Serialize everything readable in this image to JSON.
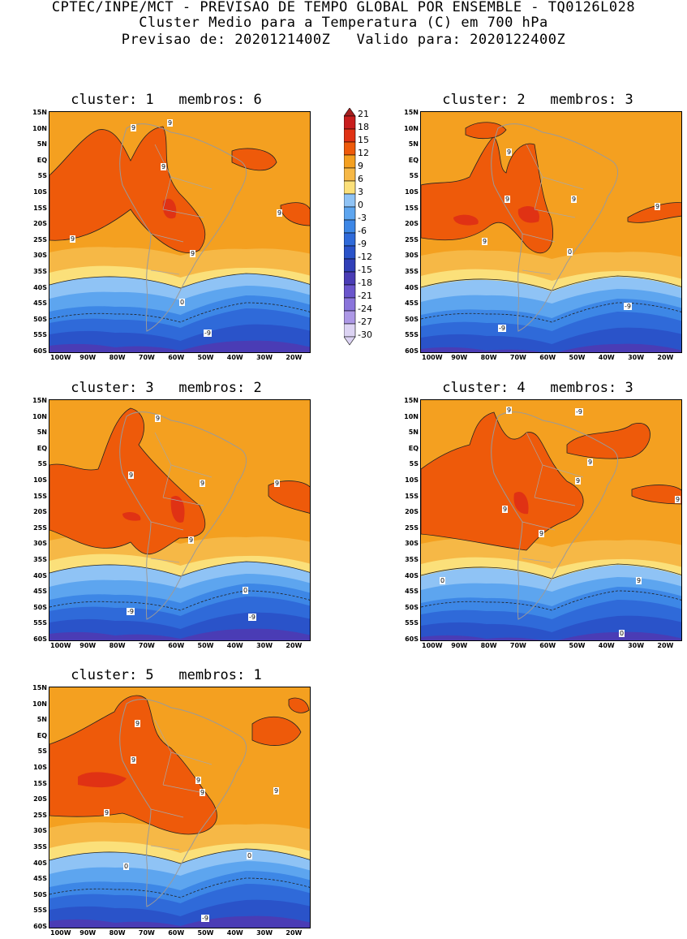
{
  "header": {
    "line1": "CPTEC/INPE/MCT - PREVISAO DE TEMPO GLOBAL POR ENSEMBLE - TQ0126L028",
    "line2": "Cluster Medio para a Temperatura (C) em 700 hPa",
    "line3": "Previsao de: 2020121400Z   Valido para: 2020122400Z"
  },
  "axes": {
    "lat_labels": [
      "15N",
      "10N",
      "5N",
      "EQ",
      "5S",
      "10S",
      "15S",
      "20S",
      "25S",
      "30S",
      "35S",
      "40S",
      "45S",
      "50S",
      "55S",
      "60S"
    ],
    "lon_labels": [
      "100W",
      "90W",
      "80W",
      "70W",
      "60W",
      "50W",
      "40W",
      "30W",
      "20W"
    ]
  },
  "colorbar": {
    "levels": [
      "21",
      "18",
      "15",
      "12",
      "9",
      "6",
      "3",
      "0",
      "-3",
      "-6",
      "-9",
      "-12",
      "-15",
      "-18",
      "-21",
      "-24",
      "-27",
      "-30"
    ],
    "colors": [
      "#a51e1e",
      "#c81e1e",
      "#e03214",
      "#ee5a0a",
      "#f4a020",
      "#f6b846",
      "#fbe07a",
      "#8fc3f5",
      "#5da5ef",
      "#3d87e6",
      "#2f6ad9",
      "#2a53c9",
      "#3140b8",
      "#4a3cb5",
      "#6a55cc",
      "#8a74db",
      "#ad98e6",
      "#dcd3f3"
    ]
  },
  "panels": [
    {
      "title": "cluster: 1   membros: 6",
      "contour_labels": [
        "9",
        "9",
        "9",
        "9",
        "9",
        "9",
        "0",
        "-9"
      ]
    },
    {
      "title": "cluster: 2   membros: 3",
      "contour_labels": [
        "9",
        "9",
        "9",
        "9",
        "9",
        "0",
        "-9",
        "-9"
      ]
    },
    {
      "title": "cluster: 3   membros: 2",
      "contour_labels": [
        "9",
        "9",
        "9",
        "9",
        "9",
        "0",
        "-9",
        "-9"
      ]
    },
    {
      "title": "cluster: 4   membros: 3",
      "contour_labels": [
        "9",
        "9",
        "9",
        "9",
        "9",
        "9",
        "9",
        "0",
        "0",
        "-9"
      ]
    },
    {
      "title": "cluster: 5   membros: 1",
      "contour_labels": [
        "9",
        "9",
        "9",
        "9",
        "9",
        "9",
        "0",
        "0",
        "-9"
      ]
    }
  ]
}
